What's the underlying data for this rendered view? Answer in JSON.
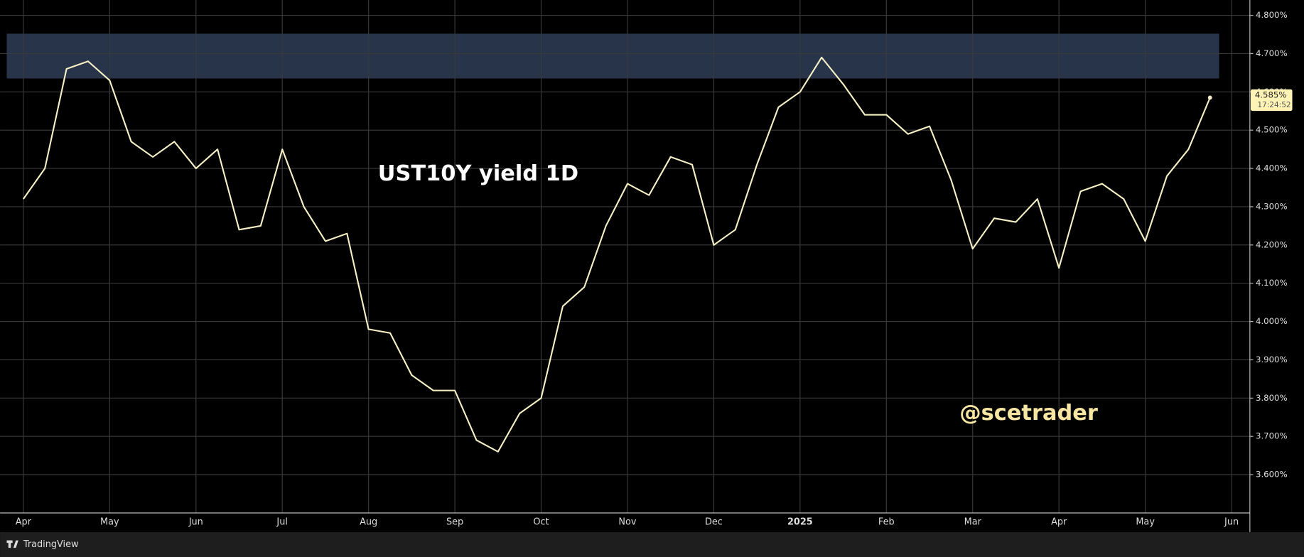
{
  "chart_data": {
    "type": "line",
    "title": "UST10Y yield 1D",
    "annotation": "@scetrader",
    "brand": "TradingView",
    "categories": [
      "Apr",
      null,
      null,
      null,
      "May",
      null,
      null,
      null,
      "Jun",
      null,
      null,
      null,
      "Jul",
      null,
      null,
      null,
      "Aug",
      null,
      null,
      null,
      "Sep",
      null,
      null,
      null,
      "Oct",
      null,
      null,
      null,
      "Nov",
      null,
      null,
      null,
      "Dec",
      null,
      null,
      null,
      "2025",
      null,
      null,
      null,
      "Feb",
      null,
      null,
      null,
      "Mar",
      null,
      null,
      null,
      "Apr",
      null,
      null,
      null,
      "May",
      null,
      null,
      null,
      "Jun"
    ],
    "values": [
      4.32,
      4.4,
      4.66,
      4.68,
      4.63,
      4.47,
      4.43,
      4.47,
      4.4,
      4.45,
      4.24,
      4.25,
      4.45,
      4.3,
      4.21,
      4.23,
      3.98,
      3.97,
      3.86,
      3.82,
      3.82,
      3.69,
      3.66,
      3.76,
      3.8,
      4.04,
      4.09,
      4.25,
      4.36,
      4.33,
      4.43,
      4.41,
      4.2,
      4.24,
      4.41,
      4.56,
      4.6,
      4.69,
      4.62,
      4.54,
      4.54,
      4.49,
      4.51,
      4.37,
      4.19,
      4.27,
      4.26,
      4.32,
      4.14,
      4.34,
      4.36,
      4.32,
      4.21,
      4.38,
      4.45,
      4.585,
      null
    ],
    "color": "#f6f0c4",
    "ylim": [
      3.5,
      4.84
    ],
    "yticks": [
      {
        "value": 3.6,
        "label": "3.600%"
      },
      {
        "value": 3.7,
        "label": "3.700%"
      },
      {
        "value": 3.8,
        "label": "3.800%"
      },
      {
        "value": 3.9,
        "label": "3.900%"
      },
      {
        "value": 4.0,
        "label": "4.000%"
      },
      {
        "value": 4.1,
        "label": "4.100%"
      },
      {
        "value": 4.2,
        "label": "4.200%"
      },
      {
        "value": 4.3,
        "label": "4.300%"
      },
      {
        "value": 4.4,
        "label": "4.400%"
      },
      {
        "value": 4.5,
        "label": "4.500%"
      },
      {
        "value": 4.6,
        "label": "4.600%"
      },
      {
        "value": 4.7,
        "label": "4.700%"
      },
      {
        "value": 4.8,
        "label": "4.800%"
      }
    ],
    "grid": true,
    "zone": [
      4.635,
      4.752
    ],
    "zone_color": "#2b3a52",
    "last_price": {
      "value": 4.585,
      "label": "4.585%"
    },
    "countdown": "17:24:52"
  }
}
